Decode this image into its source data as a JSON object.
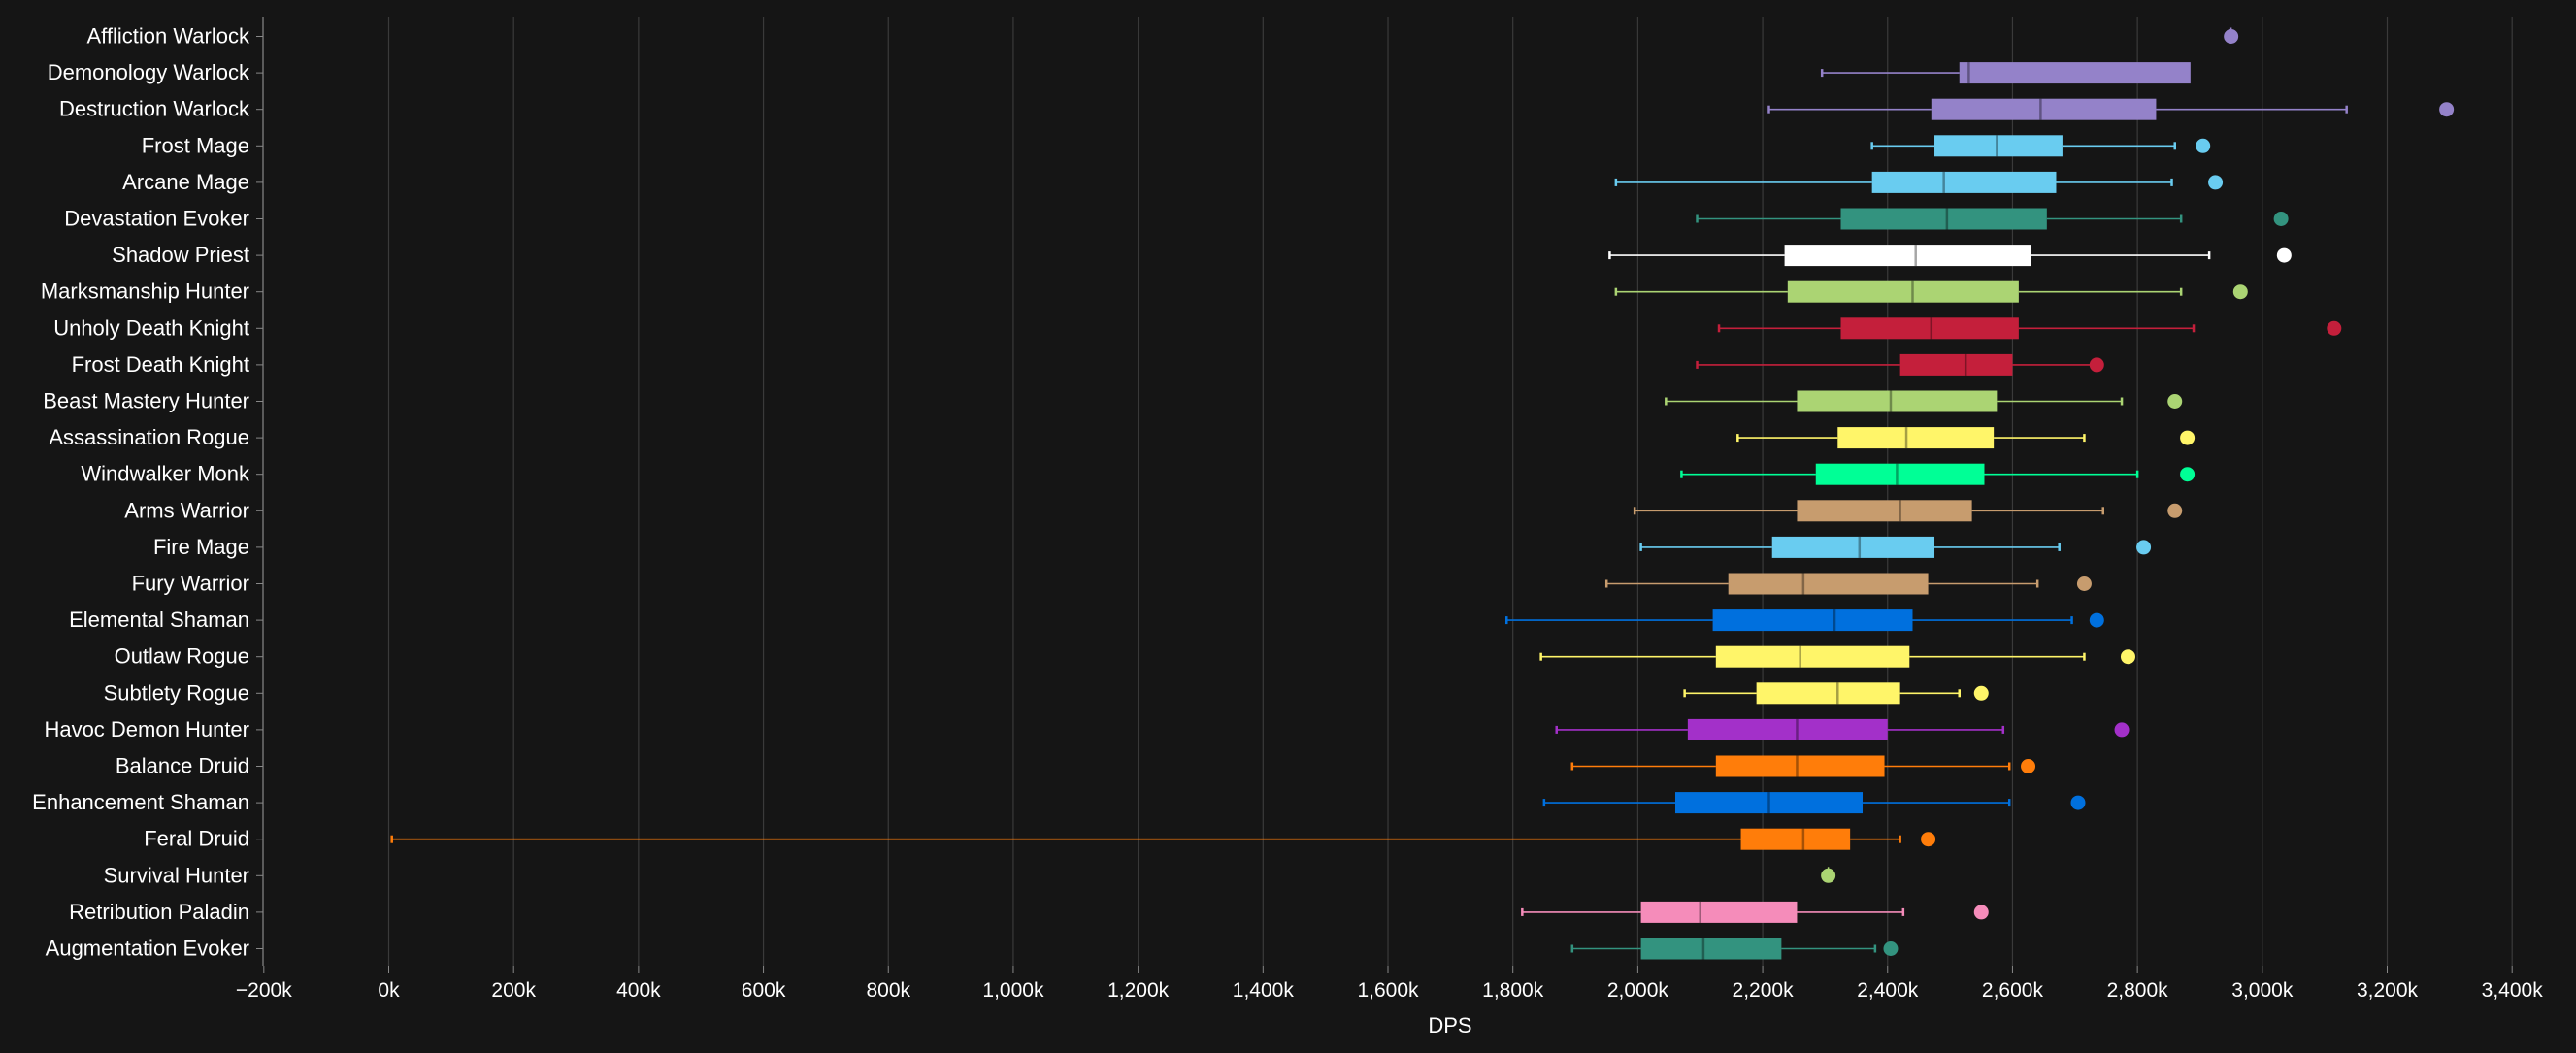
{
  "chart_data": {
    "type": "boxplot",
    "xlabel": "DPS",
    "xlim": [
      -200,
      3500
    ],
    "x_ticks": [
      -200,
      0,
      200,
      400,
      600,
      800,
      1000,
      1200,
      1400,
      1600,
      1800,
      2000,
      2200,
      2400,
      2600,
      2800,
      3000,
      3200,
      3400
    ],
    "x_tick_labels": [
      "−200k",
      "0k",
      "200k",
      "400k",
      "600k",
      "800k",
      "1,000k",
      "1,200k",
      "1,400k",
      "1,600k",
      "1,800k",
      "2,000k",
      "2,200k",
      "2,400k",
      "2,600k",
      "2,800k",
      "3,000k",
      "3,200k",
      "3,400k"
    ],
    "unit_note": "values in thousands of DPS",
    "grid": "vertical",
    "background": "#151515",
    "series": [
      {
        "name": "Affliction Warlock",
        "color": "#9482C9",
        "min": null,
        "q1": null,
        "median": null,
        "q3": null,
        "max": null,
        "outlier": 2950
      },
      {
        "name": "Demonology Warlock",
        "color": "#9482C9",
        "min": 2295,
        "q1": 2515,
        "median": 2530,
        "q3": 2885,
        "max": null,
        "outlier": null
      },
      {
        "name": "Destruction Warlock",
        "color": "#9482C9",
        "min": 2210,
        "q1": 2470,
        "median": 2645,
        "q3": 2830,
        "max": 3135,
        "outlier": 3295
      },
      {
        "name": "Frost Mage",
        "color": "#69CCF0",
        "min": 2375,
        "q1": 2475,
        "median": 2575,
        "q3": 2680,
        "max": 2860,
        "outlier": 2905
      },
      {
        "name": "Arcane Mage",
        "color": "#69CCF0",
        "min": 1965,
        "q1": 2375,
        "median": 2490,
        "q3": 2670,
        "max": 2855,
        "outlier": 2925
      },
      {
        "name": "Devastation Evoker",
        "color": "#33937F",
        "min": 2095,
        "q1": 2325,
        "median": 2495,
        "q3": 2655,
        "max": 2870,
        "outlier": 3030
      },
      {
        "name": "Shadow Priest",
        "color": "#FFFFFF",
        "min": 1955,
        "q1": 2235,
        "median": 2445,
        "q3": 2630,
        "max": 2915,
        "outlier": 3035
      },
      {
        "name": "Marksmanship Hunter",
        "color": "#ABD473",
        "min": 1965,
        "q1": 2240,
        "median": 2440,
        "q3": 2610,
        "max": 2870,
        "outlier": 2965
      },
      {
        "name": "Unholy Death Knight",
        "color": "#C41F3B",
        "min": 2130,
        "q1": 2325,
        "median": 2470,
        "q3": 2610,
        "max": 2890,
        "outlier": 3115
      },
      {
        "name": "Frost Death Knight",
        "color": "#C41F3B",
        "min": 2095,
        "q1": 2420,
        "median": 2525,
        "q3": 2600,
        "max": 2730,
        "outlier": 2735
      },
      {
        "name": "Beast Mastery Hunter",
        "color": "#ABD473",
        "min": 2045,
        "q1": 2255,
        "median": 2405,
        "q3": 2575,
        "max": 2775,
        "outlier": 2860
      },
      {
        "name": "Assassination Rogue",
        "color": "#FFF569",
        "min": 2160,
        "q1": 2320,
        "median": 2430,
        "q3": 2570,
        "max": 2715,
        "outlier": 2880
      },
      {
        "name": "Windwalker Monk",
        "color": "#00FF96",
        "min": 2070,
        "q1": 2285,
        "median": 2415,
        "q3": 2555,
        "max": 2800,
        "outlier": 2880
      },
      {
        "name": "Arms Warrior",
        "color": "#C79C6E",
        "min": 1995,
        "q1": 2255,
        "median": 2420,
        "q3": 2535,
        "max": 2745,
        "outlier": 2860
      },
      {
        "name": "Fire Mage",
        "color": "#69CCF0",
        "min": 2005,
        "q1": 2215,
        "median": 2355,
        "q3": 2475,
        "max": 2675,
        "outlier": 2810
      },
      {
        "name": "Fury Warrior",
        "color": "#C79C6E",
        "min": 1950,
        "q1": 2145,
        "median": 2265,
        "q3": 2465,
        "max": 2640,
        "outlier": 2715
      },
      {
        "name": "Elemental Shaman",
        "color": "#0070DE",
        "min": 1790,
        "q1": 2120,
        "median": 2315,
        "q3": 2440,
        "max": 2695,
        "outlier": 2735
      },
      {
        "name": "Outlaw Rogue",
        "color": "#FFF569",
        "min": 1845,
        "q1": 2125,
        "median": 2260,
        "q3": 2435,
        "max": 2715,
        "outlier": 2785
      },
      {
        "name": "Subtlety Rogue",
        "color": "#FFF569",
        "min": 2075,
        "q1": 2190,
        "median": 2320,
        "q3": 2420,
        "max": 2515,
        "outlier": 2550
      },
      {
        "name": "Havoc Demon Hunter",
        "color": "#A330C9",
        "min": 1870,
        "q1": 2080,
        "median": 2255,
        "q3": 2400,
        "max": 2585,
        "outlier": 2775
      },
      {
        "name": "Balance Druid",
        "color": "#FF7D0A",
        "min": 1895,
        "q1": 2125,
        "median": 2255,
        "q3": 2395,
        "max": 2595,
        "outlier": 2625
      },
      {
        "name": "Enhancement Shaman",
        "color": "#0070DE",
        "min": 1850,
        "q1": 2060,
        "median": 2210,
        "q3": 2360,
        "max": 2595,
        "outlier": 2705
      },
      {
        "name": "Feral Druid",
        "color": "#FF7D0A",
        "min": 5,
        "q1": 2165,
        "median": 2265,
        "q3": 2340,
        "max": 2420,
        "outlier": 2465
      },
      {
        "name": "Survival Hunter",
        "color": "#ABD473",
        "min": null,
        "q1": null,
        "median": null,
        "q3": null,
        "max": null,
        "outlier": 2305
      },
      {
        "name": "Retribution Paladin",
        "color": "#F58CBA",
        "min": 1815,
        "q1": 2005,
        "median": 2100,
        "q3": 2255,
        "max": 2425,
        "outlier": 2550
      },
      {
        "name": "Augmentation Evoker",
        "color": "#33937F",
        "min": 1895,
        "q1": 2005,
        "median": 2105,
        "q3": 2230,
        "max": 2380,
        "outlier": 2405
      }
    ]
  }
}
